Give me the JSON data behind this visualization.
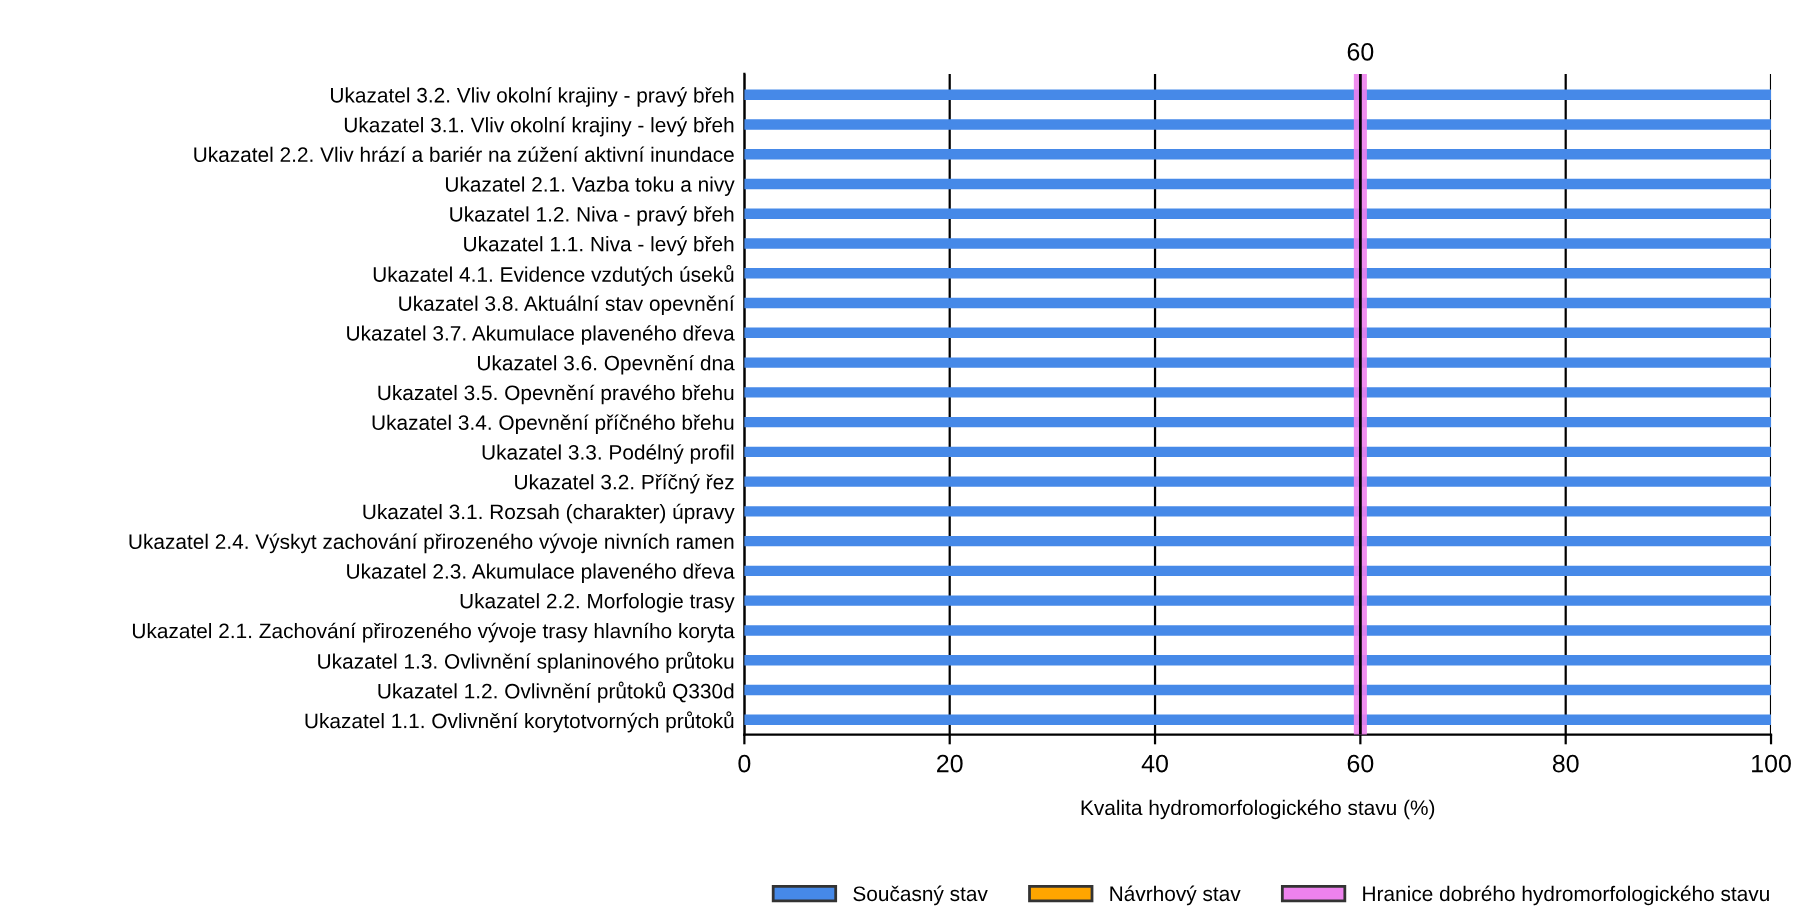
{
  "chart_data": {
    "type": "bar",
    "orientation": "horizontal",
    "xlabel": "Kvalita hydromorfologického stavu (%)",
    "categories": [
      "Ukazatel 3.2. Vliv okolní krajiny - pravý břeh",
      "Ukazatel 3.1. Vliv okolní krajiny - levý břeh",
      "Ukazatel 2.2. Vliv hrází a bariér na zúžení aktivní inundace",
      "Ukazatel 2.1. Vazba toku a nivy",
      "Ukazatel 1.2. Niva - pravý břeh",
      "Ukazatel 1.1. Niva - levý břeh",
      "Ukazatel 4.1. Evidence vzdutých úseků",
      "Ukazatel 3.8. Aktuální stav opevnění",
      "Ukazatel 3.7. Akumulace plaveného dřeva",
      "Ukazatel 3.6. Opevnění dna",
      "Ukazatel 3.5. Opevnění pravého břehu",
      "Ukazatel 3.4. Opevnění příčného břehu",
      "Ukazatel 3.3. Podélný profil",
      "Ukazatel 3.2. Příčný řez",
      "Ukazatel 3.1. Rozsah (charakter) úpravy",
      "Ukazatel 2.4. Výskyt zachování přirozeného vývoje nivních ramen",
      "Ukazatel 2.3. Akumulace plaveného dřeva",
      "Ukazatel 2.2. Morfologie trasy",
      "Ukazatel 2.1. Zachování přirozeného vývoje trasy hlavního koryta",
      "Ukazatel 1.3. Ovlivnění splaninového průtoku",
      "Ukazatel 1.2. Ovlivnění průtoků Q330d",
      "Ukazatel 1.1. Ovlivnění korytotvorných průtoků"
    ],
    "series": [
      {
        "name": "Současný stav",
        "color": "#4689e8",
        "values": [
          100,
          100,
          100,
          100,
          100,
          100,
          100,
          100,
          100,
          100,
          100,
          100,
          100,
          100,
          100,
          100,
          100,
          100,
          100,
          100,
          100,
          100
        ]
      },
      {
        "name": "Návrhový stav",
        "color": "#ffa500",
        "values": [
          null,
          null,
          null,
          null,
          null,
          null,
          null,
          null,
          null,
          null,
          null,
          null,
          null,
          null,
          null,
          null,
          null,
          null,
          null,
          null,
          null,
          null
        ]
      }
    ],
    "xlim": [
      0,
      100
    ],
    "xticks": [
      0,
      20,
      40,
      60,
      80,
      100
    ],
    "grid": "x",
    "legend": "bottom",
    "ref_lines": [
      {
        "axis": "x",
        "value": 60,
        "label": "60",
        "color": "#000000"
      }
    ],
    "bands": [
      {
        "axis": "x",
        "from": 59.5,
        "to": 60.5,
        "label": "Hranice dobrého hydromorfologického stavu",
        "color": "#ee82ee"
      }
    ]
  }
}
